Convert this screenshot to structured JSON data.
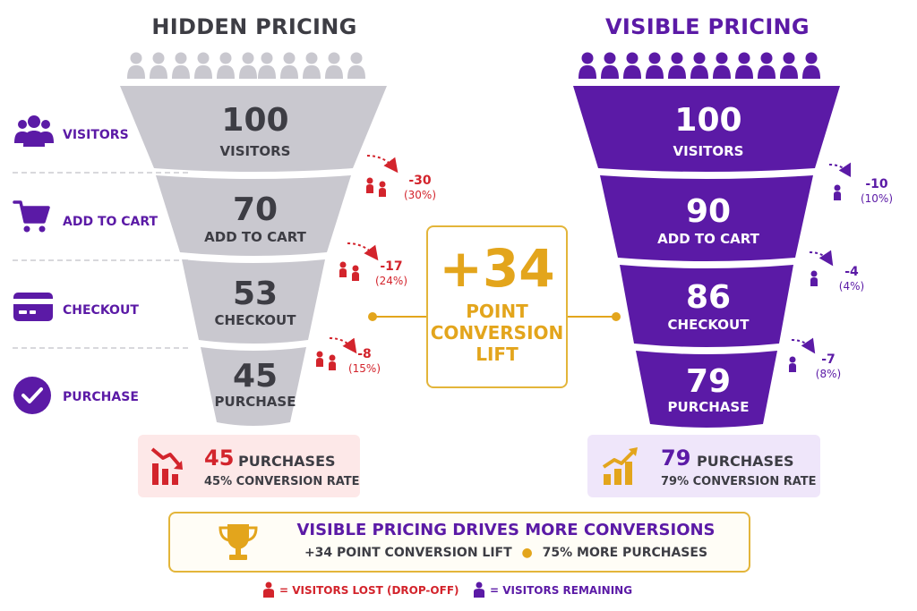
{
  "titles": {
    "hidden": "HIDDEN PRICING",
    "visible": "VISIBLE PRICING"
  },
  "stages": [
    "VISITORS",
    "ADD TO CART",
    "CHECKOUT",
    "PURCHASE"
  ],
  "hidden": {
    "values": [
      "100",
      "70",
      "53",
      "45"
    ],
    "labels": [
      "VISITORS",
      "ADD TO CART",
      "CHECKOUT",
      "PURCHASE"
    ],
    "drops": [
      {
        "value": "-30",
        "pct": "(30%)"
      },
      {
        "value": "-17",
        "pct": "(24%)"
      },
      {
        "value": "-8",
        "pct": "(15%)"
      }
    ],
    "result": {
      "count": "45",
      "unit": "PURCHASES",
      "rate": "45% CONVERSION RATE"
    }
  },
  "visible": {
    "values": [
      "100",
      "90",
      "86",
      "79"
    ],
    "labels": [
      "VISITORS",
      "ADD TO CART",
      "CHECKOUT",
      "PURCHASE"
    ],
    "drops": [
      {
        "value": "-10",
        "pct": "(10%)"
      },
      {
        "value": "-4",
        "pct": "(4%)"
      },
      {
        "value": "-7",
        "pct": "(8%)"
      }
    ],
    "result": {
      "count": "79",
      "unit": "PURCHASES",
      "rate": "79% CONVERSION RATE"
    }
  },
  "lift": {
    "value": "+34",
    "line1": "POINT",
    "line2": "CONVERSION",
    "line3": "LIFT"
  },
  "summary": {
    "headline": "VISIBLE PRICING DRIVES MORE CONVERSIONS",
    "detail1": "+34 POINT CONVERSION LIFT",
    "detail2": "75% MORE PURCHASES"
  },
  "legend": {
    "lost": "= VISITORS LOST (DROP-OFF)",
    "remaining": "= VISITORS REMAINING"
  },
  "colors": {
    "gray": "#c9c8cf",
    "purple": "#5b1aa6",
    "red": "#d3242c",
    "gold": "#e3a51c",
    "dark": "#3d3d44"
  },
  "icons": {
    "visitors": "people-group-icon",
    "add_to_cart": "shopping-cart-icon",
    "checkout": "credit-card-icon",
    "purchase": "check-circle-icon",
    "lost": "person-red-icon",
    "remaining": "person-purple-icon",
    "decline": "chart-down-icon",
    "growth": "chart-up-icon",
    "trophy": "trophy-icon"
  }
}
